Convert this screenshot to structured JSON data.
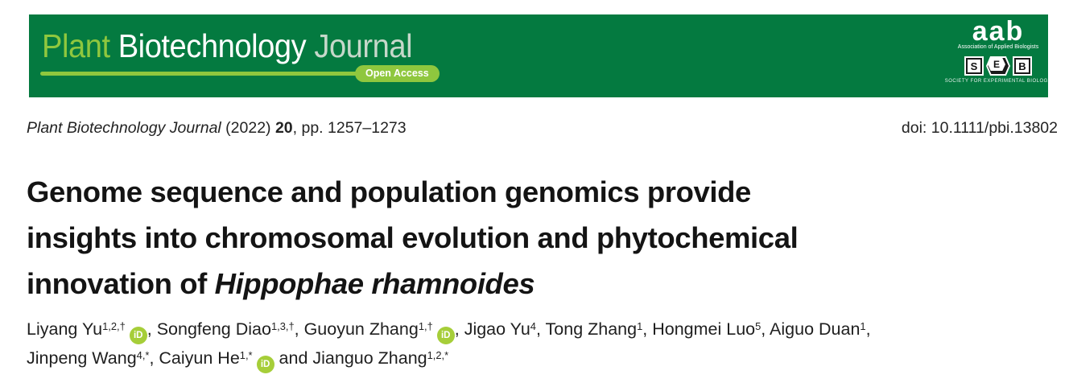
{
  "banner": {
    "bg_color": "#047a40",
    "accent_green": "#8fc73e",
    "wordmark": {
      "word1": "Plant",
      "word2": " Biotechnology",
      "word3": " Journal"
    },
    "open_access_label": "Open Access",
    "logos": {
      "aab": {
        "acronym": "aab",
        "name": "Association of Applied Biologists"
      },
      "seb": {
        "letters": [
          "S",
          "E",
          "B"
        ],
        "name": "SOCIETY FOR EXPERIMENTAL BIOLOGY"
      }
    }
  },
  "citation": {
    "journal": "Plant Biotechnology Journal",
    "year": " (2022) ",
    "volume": "20",
    "pages": ", pp. 1257–1273",
    "doi": "doi: 10.1111/pbi.13802"
  },
  "title": {
    "line1": "Genome sequence and population genomics provide",
    "line2": "insights into chromosomal evolution and phytochemical",
    "line3_prefix": "innovation of ",
    "line3_species": "Hippophae rhamnoides"
  },
  "authors": {
    "orcid_color": "#a6ce39",
    "orcid_label": "iD",
    "lines": [
      [
        {
          "name": "Liyang Yu",
          "sup": "1,2,†",
          "orcid": true,
          "sep": ", "
        },
        {
          "name": "Songfeng Diao",
          "sup": "1,3,†",
          "orcid": false,
          "sep": ", "
        },
        {
          "name": "Guoyun Zhang",
          "sup": "1,†",
          "orcid": true,
          "sep": ", "
        },
        {
          "name": "Jigao Yu",
          "sup": "4",
          "orcid": false,
          "sep": ", "
        },
        {
          "name": "Tong Zhang",
          "sup": "1",
          "orcid": false,
          "sep": ", "
        },
        {
          "name": "Hongmei Luo",
          "sup": "5",
          "orcid": false,
          "sep": ", "
        },
        {
          "name": "Aiguo Duan",
          "sup": "1",
          "orcid": false,
          "sep": ","
        }
      ],
      [
        {
          "name": "Jinpeng Wang",
          "sup": "4,*",
          "orcid": false,
          "sep": ", "
        },
        {
          "name": "Caiyun He",
          "sup": "1,*",
          "orcid": true,
          "sep": " and "
        },
        {
          "name": "Jianguo Zhang",
          "sup": "1,2,*",
          "orcid": false,
          "sep": ""
        }
      ]
    ]
  }
}
